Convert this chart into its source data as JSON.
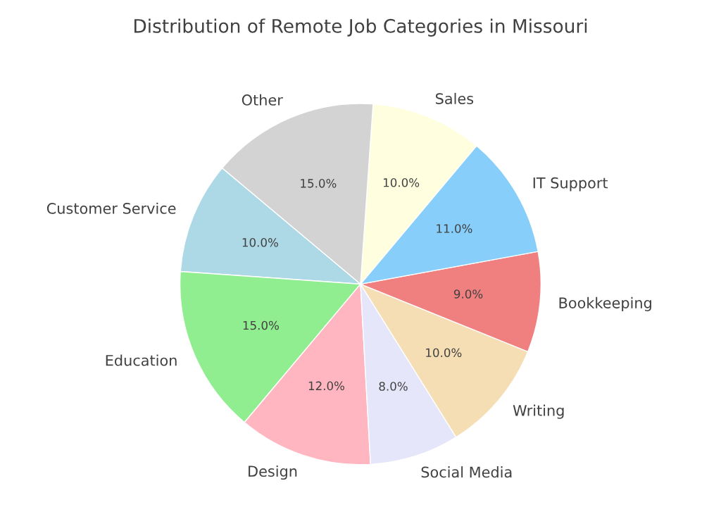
{
  "chart_data": {
    "type": "pie",
    "title": "Distribution of Remote Job Categories in Missouri",
    "categories": [
      "Customer Service",
      "Education",
      "Design",
      "Social Media",
      "Writing",
      "Bookkeeping",
      "IT Support",
      "Sales",
      "Other"
    ],
    "values": [
      10,
      15,
      12,
      8,
      10,
      9,
      11,
      10,
      15
    ],
    "value_labels": [
      "10.0%",
      "15.0%",
      "12.0%",
      "8.0%",
      "10.0%",
      "9.0%",
      "11.0%",
      "10.0%",
      "15.0%"
    ],
    "colors": [
      "#add8e6",
      "#90ee90",
      "#ffb6c1",
      "#e6e6fa",
      "#f5deb3",
      "#f08080",
      "#87cefa",
      "#ffffe0",
      "#d3d3d3"
    ]
  }
}
